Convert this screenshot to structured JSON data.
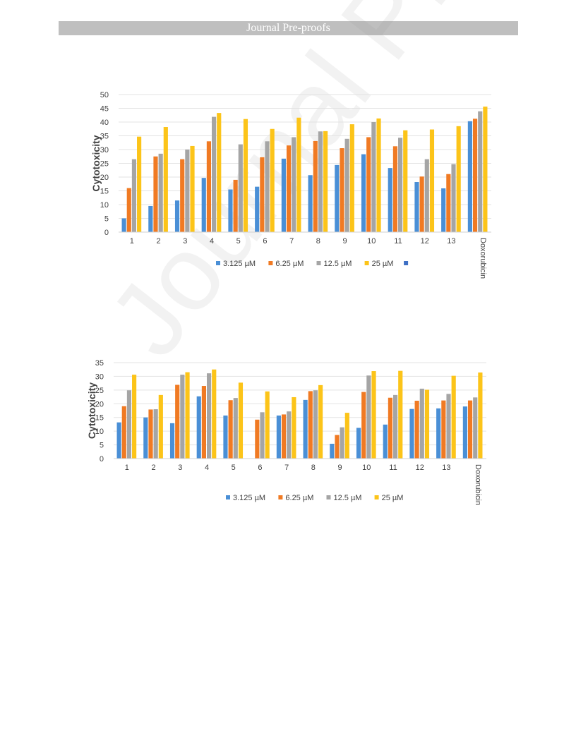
{
  "header": {
    "banner": "Journal Pre-proofs"
  },
  "watermark": "Journal Pre-proofs",
  "chart_data": [
    {
      "type": "bar",
      "title": "",
      "xlabel": "",
      "ylabel": "Cytotoxicity",
      "ylim": [
        0,
        50
      ],
      "yticks": [
        0,
        5,
        10,
        15,
        20,
        25,
        30,
        35,
        40,
        45,
        50
      ],
      "grid": true,
      "legend": "bottom",
      "legend_extra_swatch": true,
      "categories": [
        "1",
        "2",
        "3",
        "4",
        "5",
        "6",
        "7",
        "8",
        "9",
        "10",
        "11",
        "12",
        "13",
        "Doxorubicin"
      ],
      "series": [
        {
          "name": "3.125 µM",
          "color": "#4a8fd6",
          "values": [
            5,
            9.5,
            11.5,
            19.7,
            15.5,
            16.5,
            26.7,
            20.7,
            24.4,
            28.3,
            23.3,
            18.2,
            15.9,
            40.3
          ]
        },
        {
          "name": "6.25 µM",
          "color": "#f07a23",
          "values": [
            16,
            27.5,
            26.5,
            33,
            19,
            27.2,
            31.5,
            33.1,
            30.5,
            34.5,
            31.2,
            20.2,
            21.1,
            41.2
          ]
        },
        {
          "name": "12.5 µM",
          "color": "#a5a5a5",
          "values": [
            26.5,
            28.5,
            30,
            41.9,
            31.9,
            33,
            34.5,
            36.6,
            33.9,
            40,
            34.3,
            26.5,
            24.7,
            43.9
          ]
        },
        {
          "name": "25 µM",
          "color": "#fcc419",
          "values": [
            34.7,
            38.2,
            31.3,
            43.3,
            41.1,
            37.5,
            41.6,
            36.7,
            39.2,
            41.3,
            37,
            37.3,
            38.5,
            45.6
          ]
        }
      ],
      "extra_swatch_color": "#3d6fc4"
    },
    {
      "type": "bar",
      "title": "",
      "xlabel": "",
      "ylabel": "Cytotoxicity",
      "ylim": [
        0,
        35
      ],
      "yticks": [
        0,
        5,
        10,
        15,
        20,
        25,
        30,
        35
      ],
      "grid": true,
      "legend": "bottom",
      "legend_extra_swatch": false,
      "categories": [
        "1",
        "2",
        "3",
        "4",
        "5",
        "6",
        "7",
        "8",
        "9",
        "10",
        "11",
        "12",
        "13",
        "Doxorubicin"
      ],
      "series": [
        {
          "name": "3.125 µM",
          "color": "#4a8fd6",
          "values": [
            13.2,
            15,
            12.9,
            22.7,
            15.7,
            0,
            15.7,
            21.4,
            5.4,
            11.2,
            12.4,
            18.1,
            18.3,
            19
          ]
        },
        {
          "name": "6.25 µM",
          "color": "#f07a23",
          "values": [
            19.1,
            17.9,
            26.9,
            26.5,
            21.3,
            14.2,
            16.1,
            24.6,
            8.6,
            24.3,
            22.2,
            21.1,
            21.2,
            21.2
          ]
        },
        {
          "name": "12.5 µM",
          "color": "#a5a5a5",
          "values": [
            24.9,
            18,
            30.6,
            31.1,
            22.1,
            16.9,
            17.2,
            24.9,
            11.4,
            30.3,
            23.2,
            25.5,
            23.6,
            22.3
          ]
        },
        {
          "name": "25 µM",
          "color": "#fcc419",
          "values": [
            30.6,
            23.2,
            31.5,
            32.5,
            27.7,
            24.5,
            22.4,
            26.8,
            16.7,
            31.9,
            32,
            25.1,
            30.2,
            31.4
          ]
        }
      ]
    }
  ]
}
